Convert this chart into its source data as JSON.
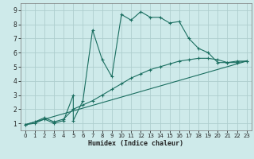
{
  "xlabel": "Humidex (Indice chaleur)",
  "background_color": "#ceeaea",
  "grid_color": "#aecece",
  "line_color": "#1a6e60",
  "xlim": [
    -0.5,
    23.5
  ],
  "ylim": [
    0.5,
    9.5
  ],
  "xtick_min": 0,
  "xtick_max": 23,
  "yticks": [
    1,
    2,
    3,
    4,
    5,
    6,
    7,
    8,
    9
  ],
  "line1_x": [
    0,
    1,
    2,
    3,
    4,
    5,
    5,
    6,
    7,
    8,
    9,
    10,
    11,
    12,
    13,
    14,
    15,
    16,
    17,
    18,
    19,
    20,
    21,
    22,
    23
  ],
  "line1_y": [
    0.9,
    1.0,
    1.3,
    1.0,
    1.2,
    3.0,
    1.2,
    2.6,
    7.6,
    5.5,
    4.3,
    8.7,
    8.3,
    8.9,
    8.5,
    8.5,
    8.1,
    8.2,
    7.0,
    6.3,
    6.0,
    5.3,
    5.3,
    5.4,
    5.4
  ],
  "line2_x": [
    0,
    1,
    2,
    3,
    4,
    5,
    6,
    7,
    8,
    9,
    10,
    11,
    12,
    13,
    14,
    15,
    16,
    17,
    18,
    19,
    20,
    21,
    22,
    23
  ],
  "line2_y": [
    0.9,
    1.1,
    1.4,
    1.1,
    1.3,
    2.0,
    2.3,
    2.6,
    3.0,
    3.4,
    3.8,
    4.2,
    4.5,
    4.8,
    5.0,
    5.2,
    5.4,
    5.5,
    5.6,
    5.6,
    5.5,
    5.3,
    5.3,
    5.4
  ],
  "line3_x": [
    0,
    23
  ],
  "line3_y": [
    0.9,
    5.4
  ]
}
